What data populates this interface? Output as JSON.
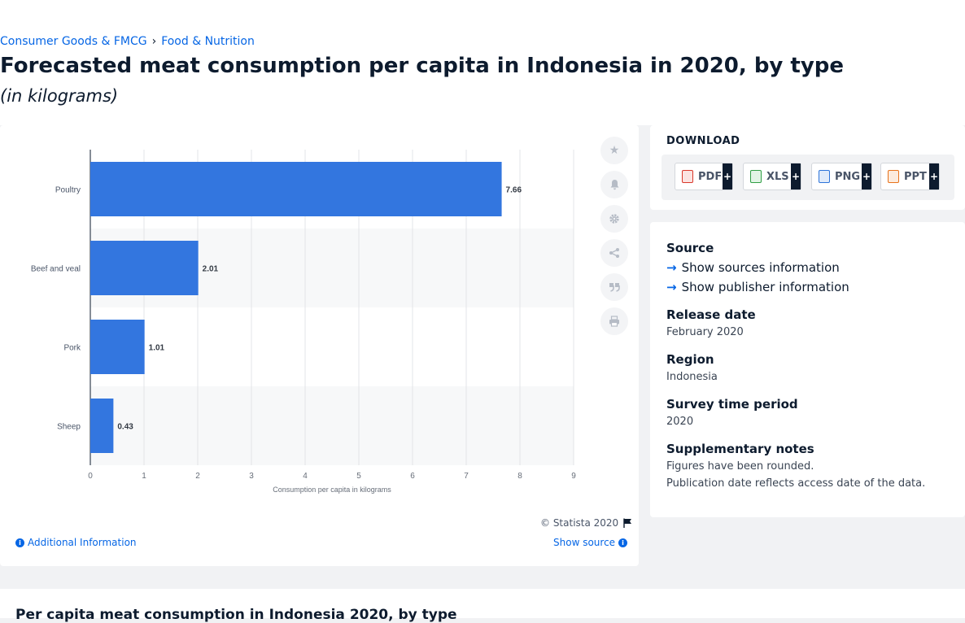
{
  "breadcrumb": {
    "item1": "Consumer Goods & FMCG",
    "sep": "›",
    "item2": "Food & Nutrition"
  },
  "header": {
    "title": "Forecasted meat consumption per capita in Indonesia in 2020, by type",
    "subtitle": "(in kilograms)"
  },
  "colors": {
    "bar": "#3376df",
    "accent": "#0666e5",
    "stripe": "#f7f8f9"
  },
  "chart_data": {
    "type": "bar",
    "orientation": "horizontal",
    "categories": [
      "Poultry",
      "Beef and veal",
      "Pork",
      "Sheep"
    ],
    "values": [
      7.66,
      2.01,
      1.01,
      0.43
    ],
    "value_labels": [
      "7.66",
      "2.01",
      "1.01",
      "0.43"
    ],
    "xlabel": "Consumption per capita in kilograms",
    "xlim": [
      0,
      9
    ],
    "xticks": [
      "0",
      "1",
      "2",
      "3",
      "4",
      "5",
      "6",
      "7",
      "8",
      "9"
    ],
    "grid": true,
    "legend": "none"
  },
  "toolbar": {
    "icons": [
      "star-icon",
      "bell-icon",
      "gear-icon",
      "share-icon",
      "quote-icon",
      "print-icon"
    ]
  },
  "download": {
    "label": "DOWNLOAD",
    "buttons": [
      {
        "label": "PDF",
        "icon": "pdf-icon",
        "color": "#d9372a"
      },
      {
        "label": "XLS",
        "icon": "xls-icon",
        "color": "#2f9e44"
      },
      {
        "label": "PNG",
        "icon": "png-icon",
        "color": "#2d74da"
      },
      {
        "label": "PPT",
        "icon": "ppt-icon",
        "color": "#e8731b"
      }
    ],
    "plus": "+"
  },
  "info": {
    "source_h": "Source",
    "show_sources": "Show sources information",
    "show_publisher": "Show publisher information",
    "release_h": "Release date",
    "release": "February 2020",
    "region_h": "Region",
    "region": "Indonesia",
    "survey_h": "Survey time period",
    "survey": "2020",
    "notes_h": "Supplementary notes",
    "note1": "Figures have been rounded.",
    "note2": "Publication date reflects access date of the data."
  },
  "footer": {
    "copyright": "© Statista 2020",
    "additional": "Additional Information",
    "show_source": "Show source"
  },
  "next": {
    "title": "Per capita meat consumption in Indonesia 2020, by type"
  }
}
